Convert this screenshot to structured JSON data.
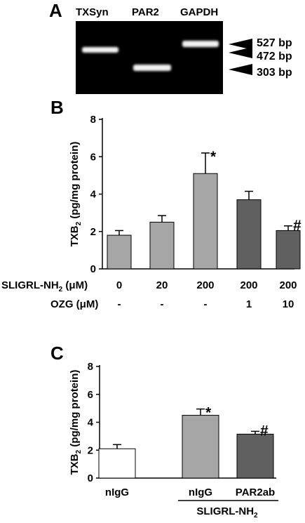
{
  "panels": [
    {
      "letter": "A"
    },
    {
      "letter": "B"
    },
    {
      "letter": "C"
    }
  ],
  "gel": {
    "lanes": [
      "TXSyn",
      "PAR2",
      "GAPDH"
    ],
    "markers": [
      "527 bp",
      "472 bp",
      "303 bp"
    ]
  },
  "chart_data": [
    {
      "type": "bar",
      "panel": "B",
      "ylabel": "TXB2 (pg/mg protein)",
      "ylabel_main": "TXB",
      "ylabel_sub": "2",
      "ylabel_rest": " (pg/mg protein)",
      "ylim": [
        0,
        8
      ],
      "yticks": [
        0,
        2,
        4,
        6,
        8
      ],
      "values": [
        1.8,
        2.5,
        5.1,
        3.7,
        2.05
      ],
      "errors": [
        0.25,
        0.35,
        1.1,
        0.45,
        0.25
      ],
      "colors": [
        "#a6a6a6",
        "#a6a6a6",
        "#a6a6a6",
        "#606060",
        "#606060"
      ],
      "significance": [
        "",
        "",
        "*",
        "",
        "#"
      ],
      "condition_rows": [
        {
          "label": "SLIGRL-NH",
          "sub": "2",
          "unit": " (μM)",
          "values": [
            "0",
            "20",
            "200",
            "200",
            "200"
          ]
        },
        {
          "label": "OZG",
          "sub": "",
          "unit": " (μM)",
          "values": [
            "-",
            "-",
            "-",
            "1",
            "10"
          ]
        }
      ]
    },
    {
      "type": "bar",
      "panel": "C",
      "ylabel": "TXB2 (pg/mg protein)",
      "ylabel_main": "TXB",
      "ylabel_sub": "2",
      "ylabel_rest": " (pg/mg protein)",
      "ylim": [
        0,
        8
      ],
      "yticks": [
        0,
        2,
        4,
        6,
        8
      ],
      "categories": [
        "nIgG",
        "nIgG",
        "PAR2ab"
      ],
      "values": [
        2.1,
        4.5,
        3.15
      ],
      "errors": [
        0.3,
        0.45,
        0.2
      ],
      "colors": [
        "#ffffff",
        "#a6a6a6",
        "#606060"
      ],
      "significance": [
        "",
        "*",
        "#"
      ],
      "group_label": {
        "text": "SLIGRL-NH",
        "sub": "2"
      }
    }
  ]
}
